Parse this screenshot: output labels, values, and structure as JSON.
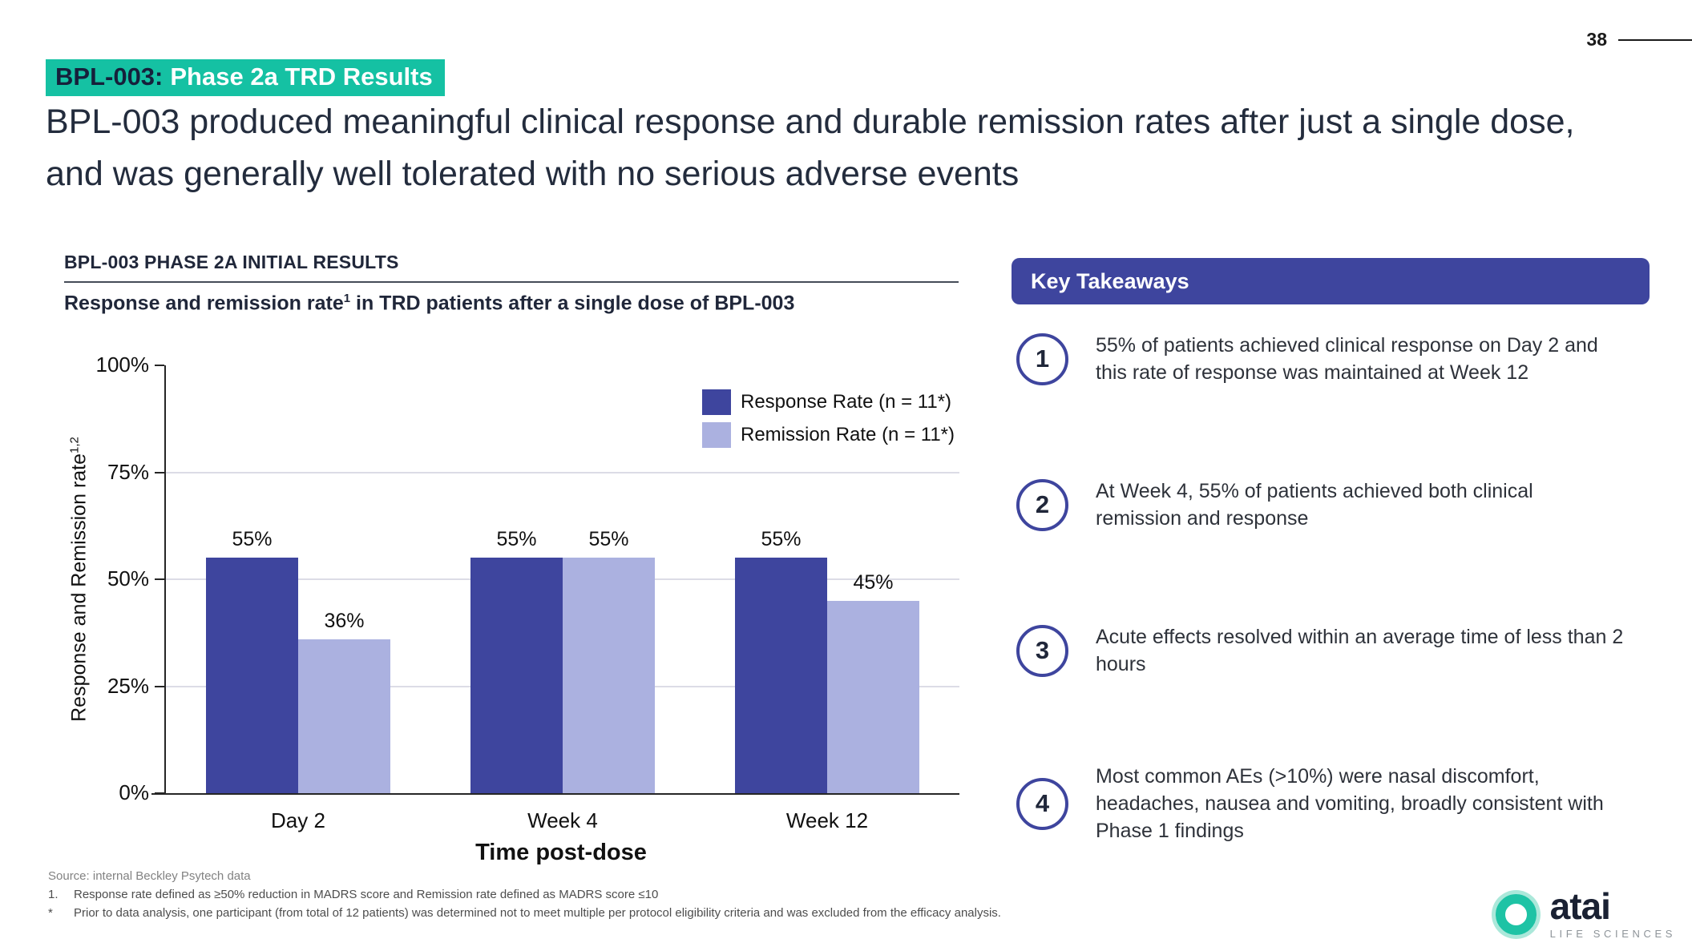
{
  "page": {
    "number": "38"
  },
  "header": {
    "chip": {
      "product": "BPL-003:",
      "label": "Phase 2a TRD Results"
    },
    "headline": "BPL-003 produced meaningful clinical response and durable remission rates after just a single dose, and was generally well tolerated with no serious adverse events"
  },
  "chart_section": {
    "kicker": "BPL-003 PHASE 2A INITIAL RESULTS",
    "subtitle": {
      "pre": "Response and remission rate",
      "sup": "1",
      "post": " in TRD patients after a single dose of BPL-003"
    }
  },
  "chart_data": {
    "type": "bar",
    "title": "Response and remission rate in TRD patients after a single dose of BPL-003",
    "categories": [
      "Day 2",
      "Week 4",
      "Week 12"
    ],
    "series": [
      {
        "name": "Response Rate (n = 11*)",
        "values": [
          55,
          55,
          55
        ],
        "color": "#3E459E"
      },
      {
        "name": "Remission Rate (n = 11*)",
        "values": [
          36,
          55,
          45
        ],
        "color": "#ABB1E0"
      }
    ],
    "xlabel": "Time post-dose",
    "ylabel": {
      "pre": "Response and Remission rate",
      "sup": "1,2"
    },
    "ylim": [
      0,
      100
    ],
    "yticks": [
      "0%",
      "25%",
      "50%",
      "75%",
      "100%"
    ],
    "grid": "horizontal gridlines at 25%, 50%, 75%",
    "legend_position": "top-right"
  },
  "takeaways": {
    "header": "Key Takeaways",
    "items": [
      {
        "num": "1",
        "text": "55% of patients achieved clinical response on Day 2 and this rate of response was maintained at Week 12"
      },
      {
        "num": "2",
        "text": "At Week 4, 55% of patients achieved both clinical remission and response"
      },
      {
        "num": "3",
        "text": "Acute effects resolved within an average time of less than 2 hours"
      },
      {
        "num": "4",
        "text": "Most common AEs (>10%) were nasal discomfort, headaches, nausea and vomiting, broadly consistent with Phase 1 findings"
      }
    ]
  },
  "footnotes": [
    {
      "marker": "",
      "text": "Source: internal Beckley Psytech data"
    },
    {
      "marker": "1.",
      "text": "Response rate defined as ≥50% reduction in MADRS score and Remission rate defined as MADRS score ≤10"
    },
    {
      "marker": "*",
      "text": "Prior to data analysis, one participant (from total of 12 patients) was determined not to meet multiple per protocol eligibility criteria and was excluded from the efficacy analysis."
    }
  ],
  "logo": {
    "brand": "atai",
    "tagline": "LIFE SCIENCES"
  },
  "colors": {
    "accent_teal": "#15C1A3",
    "indigo": "#3E459E",
    "periwinkle": "#ABB1E0",
    "headline_navy": "#232C3D",
    "gridline": "#DCDCE6"
  }
}
